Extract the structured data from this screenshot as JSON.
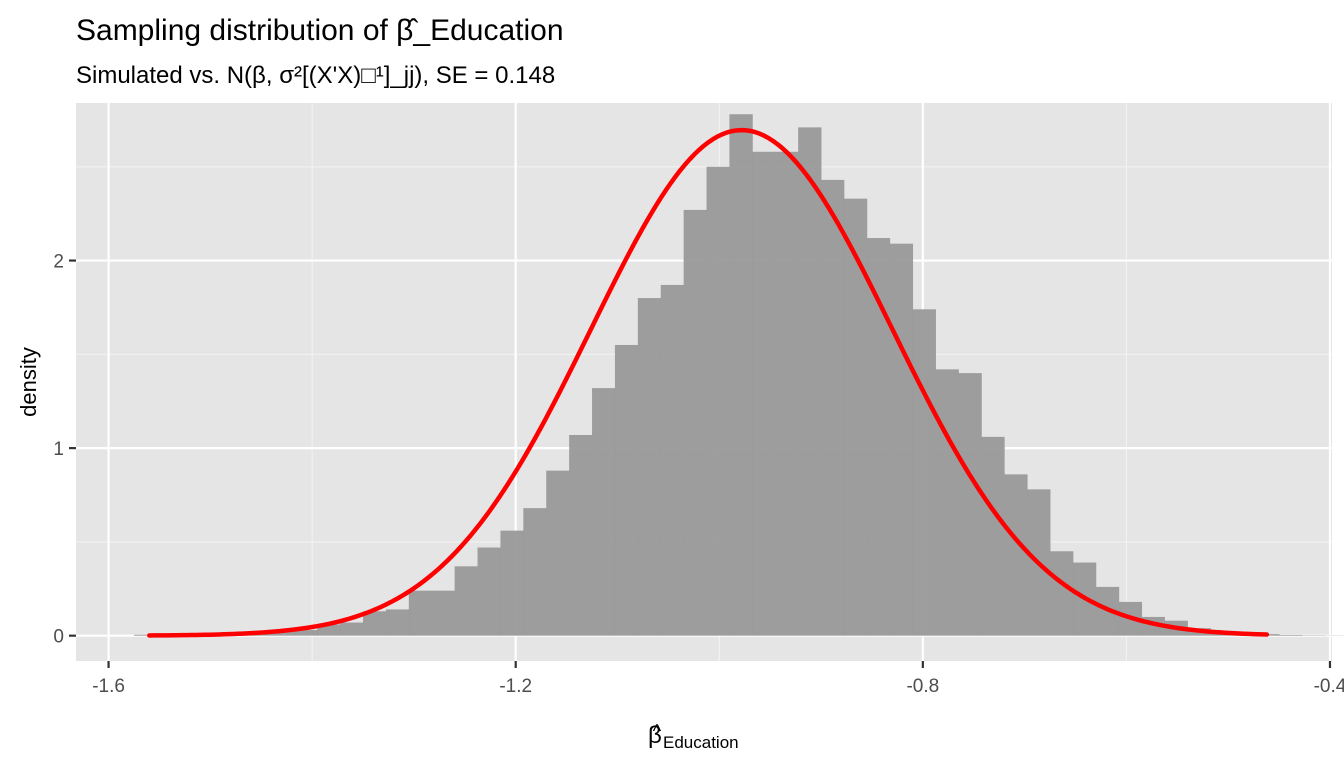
{
  "colors": {
    "panel_background": "#e5e5e5",
    "grid_major": "#ffffff",
    "grid_minor": "#f2f2f2",
    "bar_fill": "#999999",
    "curve": "#ff0000",
    "axis_text": "#4d4d4d",
    "title_text": "#000000"
  },
  "chart_data": {
    "type": "bar",
    "title": "Sampling distribution of β̂_Education",
    "subtitle": "Simulated vs. N(β, σ²[(X'X)□¹]_jj), SE = 0.148",
    "xlabel_base": "β",
    "xlabel_hat": "^",
    "xlabel_sub": "Education",
    "ylabel": "density",
    "xlim": [
      -1.632,
      -0.398
    ],
    "ylim": [
      -0.135,
      2.84
    ],
    "x_breaks": [
      -1.6,
      -1.2,
      -0.8,
      -0.4
    ],
    "x_tick_labels": [
      "-1.6",
      "-1.2",
      "-0.8",
      "-0.4"
    ],
    "y_breaks": [
      0,
      1,
      2
    ],
    "y_tick_labels": [
      "0",
      "1",
      "2"
    ],
    "grid": true,
    "histogram": {
      "bin_width": 0.0225,
      "bin_start": -1.575,
      "densities": [
        0.005,
        0.0,
        0.0,
        0.0,
        0.005,
        0.01,
        0.02,
        0.03,
        0.06,
        0.07,
        0.13,
        0.14,
        0.24,
        0.24,
        0.37,
        0.47,
        0.56,
        0.68,
        0.88,
        1.07,
        1.32,
        1.55,
        1.8,
        1.87,
        2.27,
        2.5,
        2.78,
        2.58,
        2.58,
        2.71,
        2.43,
        2.33,
        2.12,
        2.09,
        1.74,
        1.42,
        1.4,
        1.06,
        0.86,
        0.78,
        0.45,
        0.39,
        0.26,
        0.18,
        0.1,
        0.08,
        0.04,
        0.025,
        0.015,
        0.008,
        0.004,
        0.002,
        0.001
      ]
    },
    "normal_curve": {
      "mean": -0.978,
      "sd": 0.148,
      "x_range": [
        -1.56,
        -0.462
      ]
    }
  }
}
